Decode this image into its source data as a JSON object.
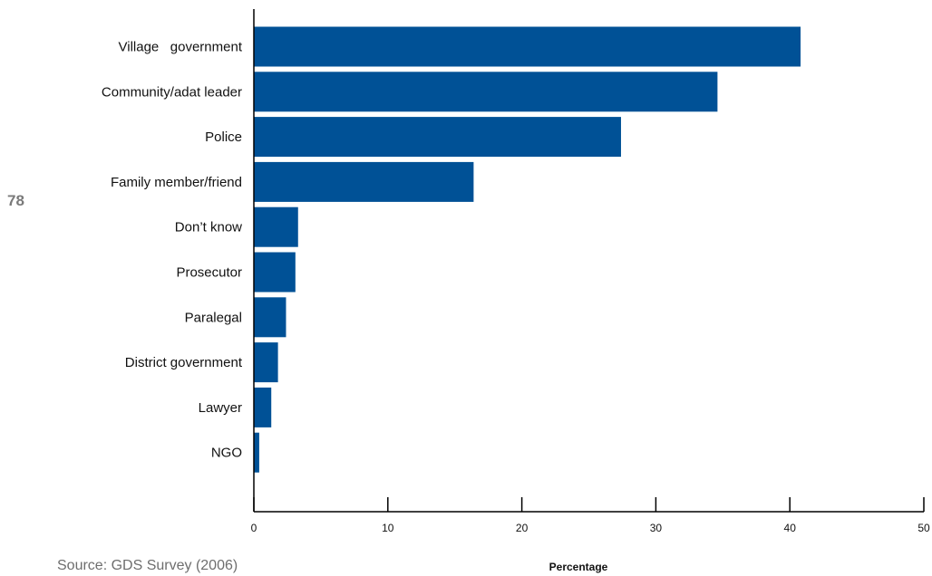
{
  "page": {
    "page_number": "78",
    "source": "Source: GDS Survey (2006)"
  },
  "chart_data": {
    "type": "bar",
    "orientation": "horizontal",
    "categories": [
      "Village   government",
      "Community/adat leader",
      "Police",
      "Family member/friend",
      "Don’t know",
      "Prosecutor",
      "Paralegal",
      "District government",
      "Lawyer",
      "NGO"
    ],
    "values": [
      40.8,
      34.6,
      27.4,
      16.4,
      3.3,
      3.1,
      2.4,
      1.8,
      1.3,
      0.4
    ],
    "xlabel": "Percentage",
    "ylabel": "",
    "xlim": [
      0,
      50
    ],
    "xticks": [
      0,
      10,
      20,
      30,
      40,
      50
    ],
    "colors": {
      "bar": "#005196",
      "axis": "#000000"
    },
    "grid": false,
    "legend": "none"
  }
}
